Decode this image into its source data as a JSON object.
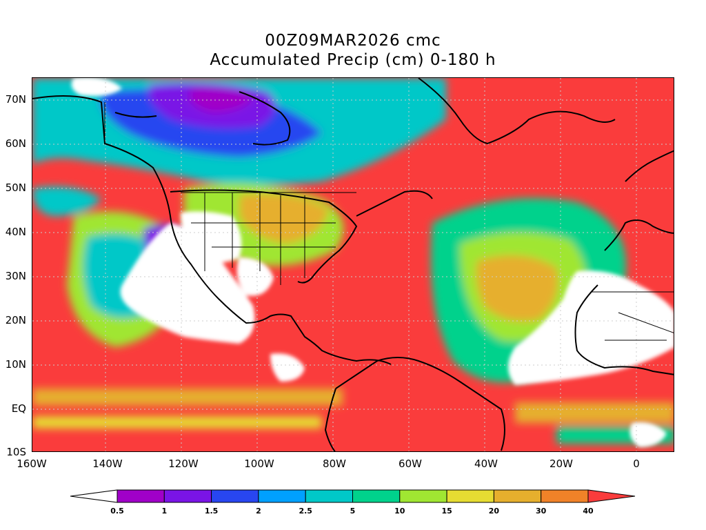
{
  "title": {
    "line1": "00Z09MAR2026 cmc",
    "line2": "Accumulated Precip (cm) 0-180 h"
  },
  "map": {
    "lat_labels": [
      "70N",
      "60N",
      "50N",
      "40N",
      "30N",
      "20N",
      "10N",
      "EQ",
      "10S"
    ],
    "lon_labels": [
      "160W",
      "140W",
      "120W",
      "100W",
      "80W",
      "60W",
      "40W",
      "20W",
      "0"
    ],
    "lat_range": [
      -10,
      75
    ],
    "lon_range": [
      -160,
      10
    ]
  },
  "colorbar": {
    "levels": [
      "0.5",
      "1",
      "1.5",
      "2",
      "2.5",
      "5",
      "10",
      "15",
      "20",
      "30",
      "40"
    ],
    "colors": [
      "#ffffff",
      "#a000c8",
      "#7a14e6",
      "#2846f0",
      "#00a0ff",
      "#00c8c8",
      "#00d28c",
      "#a0e632",
      "#e6dc32",
      "#e6af2d",
      "#f08228",
      "#fa3c3c"
    ]
  }
}
